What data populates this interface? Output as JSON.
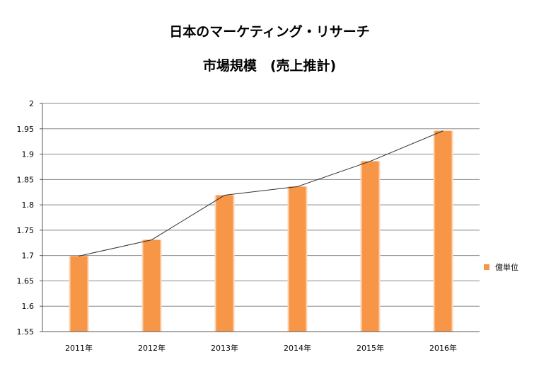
{
  "chart_data": {
    "type": "bar",
    "title": "日本のマーケティング・リサーチ",
    "subtitle": "市場規模　(売上推計)",
    "categories": [
      "2011年",
      "2012年",
      "2013年",
      "2014年",
      "2015年",
      "2016年"
    ],
    "series": [
      {
        "name": "億単位",
        "values": [
          1.699,
          1.731,
          1.819,
          1.836,
          1.886,
          1.946
        ]
      }
    ],
    "line_overlay": true,
    "ylim": [
      1.55,
      2
    ],
    "yticks": [
      "1.55",
      "1.6",
      "1.65",
      "1.7",
      "1.75",
      "1.8",
      "1.85",
      "1.9",
      "1.95",
      "2"
    ],
    "xlabel": "",
    "ylabel": "",
    "grid": true,
    "legend_position": "right",
    "colors": {
      "bar": "#F79646",
      "bar_highlight": "#FBD5B5",
      "line": "#333333",
      "grid": "#888888"
    }
  }
}
